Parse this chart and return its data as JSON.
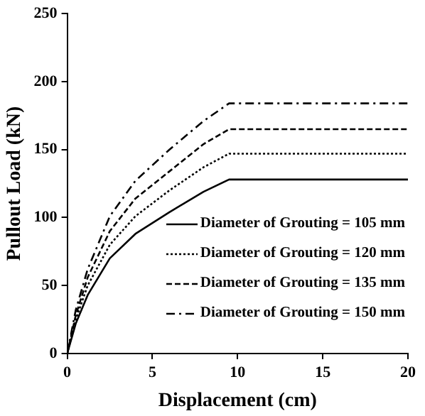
{
  "chart_data": {
    "type": "line",
    "xlabel": "Displacement (cm)",
    "ylabel": "Pullout Load (kN)",
    "xlim": [
      0,
      20
    ],
    "xticks": [
      0,
      5,
      10,
      15,
      20
    ],
    "ylim": [
      0,
      250
    ],
    "yticks": [
      0,
      50,
      100,
      150,
      200,
      250
    ],
    "grid": false,
    "legend": "bottom right",
    "marker": "none",
    "series": [
      {
        "name": "Diameter of Grouting = 105 mm",
        "color": "#000000",
        "line_style": "solid",
        "x": [
          0,
          0.5,
          1.2,
          2.5,
          4,
          6,
          8,
          9.5,
          20
        ],
        "values": [
          0,
          22,
          43,
          70,
          88,
          104,
          119,
          128,
          128
        ]
      },
      {
        "name": "Diameter of Grouting = 120 mm",
        "color": "#000000",
        "line_style": "dotted",
        "x": [
          0,
          0.5,
          1.2,
          2.5,
          4,
          6,
          8,
          9.5,
          20
        ],
        "values": [
          0,
          25,
          50,
          80,
          101,
          120,
          137,
          147,
          147
        ]
      },
      {
        "name": "Diameter of Grouting = 135 mm",
        "color": "#000000",
        "line_style": "dashed",
        "x": [
          0,
          0.5,
          1.2,
          2.5,
          4,
          6,
          8,
          9.5,
          20
        ],
        "values": [
          0,
          28,
          56,
          90,
          114,
          134,
          154,
          165,
          165
        ]
      },
      {
        "name": "Diameter of Grouting = 150 mm",
        "color": "#000000",
        "line_style": "dashdot",
        "x": [
          0,
          0.5,
          1.2,
          2.5,
          4,
          6,
          8,
          9.5,
          20
        ],
        "values": [
          0,
          32,
          62,
          101,
          127,
          150,
          171,
          184,
          184
        ]
      }
    ]
  }
}
